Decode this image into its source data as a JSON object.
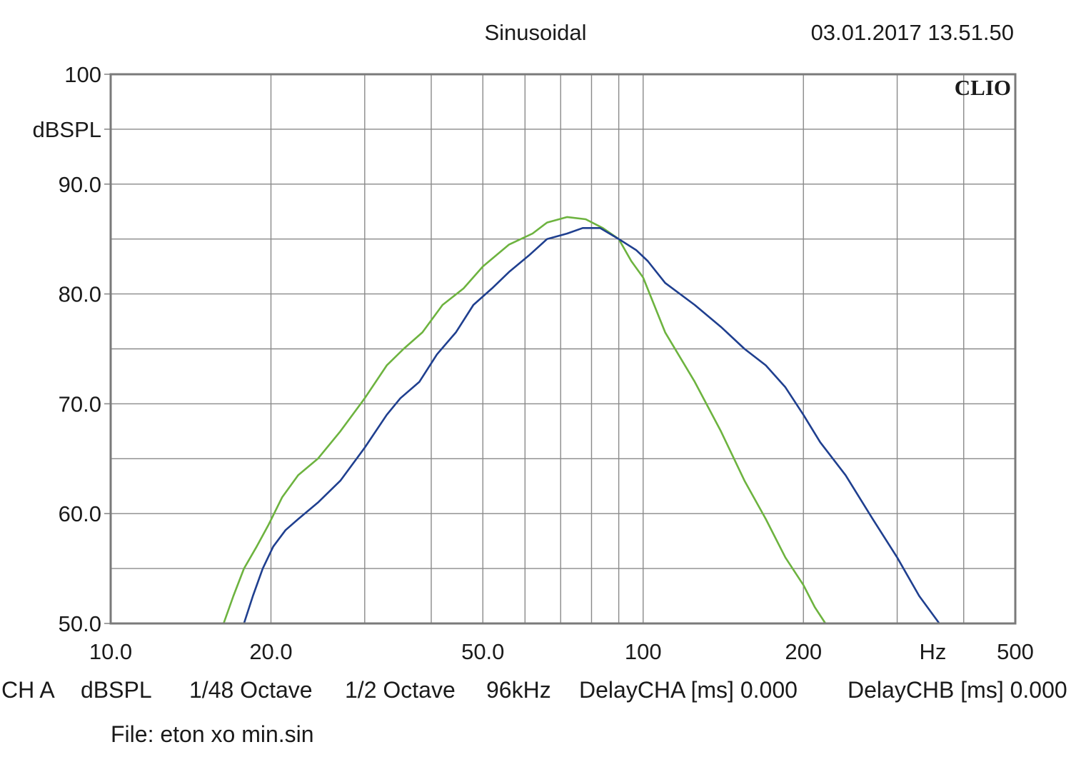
{
  "header": {
    "title": "Sinusoidal",
    "timestamp": "03.01.2017 13.51.50",
    "brand": "CLIO"
  },
  "footer": {
    "channel": "CH A",
    "unit": "dBSPL",
    "resolution": "1/48 Octave",
    "smoothing": "1/2 Octave",
    "sample_rate": "96kHz",
    "delay_a": "DelayCHA [ms] 0.000",
    "delay_b": "DelayCHB [ms] 0.000",
    "file": "File: eton xo min.sin"
  },
  "colors": {
    "grid": "#8a8a8a",
    "frame": "#7a7a7a",
    "series_green": "#6db33f",
    "series_blue": "#1f3f8f"
  },
  "chart_data": {
    "type": "line",
    "title": "Sinusoidal",
    "xlabel": "Hz",
    "ylabel": "dBSPL",
    "xscale": "log",
    "xlim": [
      10,
      500
    ],
    "ylim": [
      50,
      100
    ],
    "grid": true,
    "x_tick_labels": [
      {
        "value": 10,
        "label": "10.0"
      },
      {
        "value": 20,
        "label": "20.0"
      },
      {
        "value": 50,
        "label": "50.0"
      },
      {
        "value": 100,
        "label": "100"
      },
      {
        "value": 200,
        "label": "200"
      },
      {
        "value": 500,
        "label": "500"
      }
    ],
    "x_unit_label": {
      "value": 350,
      "label": "Hz"
    },
    "x_grid_values": [
      20,
      30,
      40,
      50,
      60,
      70,
      80,
      90,
      100,
      200,
      300,
      400
    ],
    "y_tick_labels": [
      {
        "value": 100,
        "label": "100"
      },
      {
        "value": 90,
        "label": "90.0"
      },
      {
        "value": 80,
        "label": "80.0"
      },
      {
        "value": 70,
        "label": "70.0"
      },
      {
        "value": 60,
        "label": "60.0"
      },
      {
        "value": 50,
        "label": "50.0"
      }
    ],
    "y_unit_label": {
      "value": 95,
      "label": "dBSPL"
    },
    "y_grid_values": [
      55,
      60,
      65,
      70,
      75,
      80,
      85,
      90,
      95
    ],
    "series": [
      {
        "color": "#6db33f",
        "x": [
          16.3,
          17.0,
          17.8,
          18.8,
          19.8,
          21.0,
          22.5,
          24.5,
          27.0,
          30.0,
          33.0,
          35.5,
          38.5,
          42.0,
          46.0,
          50.0,
          56.0,
          62.0,
          66.0,
          72.0,
          78.0,
          84.0,
          90.0,
          95.0,
          100.0,
          110.0,
          125.0,
          140.0,
          155.0,
          170.0,
          185.0,
          200.0,
          210.0,
          220.0
        ],
        "y": [
          50.0,
          52.5,
          55.0,
          57.0,
          59.0,
          61.5,
          63.5,
          65.0,
          67.5,
          70.5,
          73.5,
          75.0,
          76.5,
          79.0,
          80.5,
          82.5,
          84.5,
          85.5,
          86.5,
          87.0,
          86.8,
          86.0,
          85.0,
          83.0,
          81.5,
          76.5,
          72.0,
          67.5,
          63.0,
          59.5,
          56.0,
          53.5,
          51.5,
          50.0
        ]
      },
      {
        "color": "#1f3f8f",
        "x": [
          17.8,
          18.5,
          19.3,
          20.2,
          21.3,
          22.5,
          24.5,
          27.0,
          30.0,
          33.0,
          35.0,
          38.0,
          41.0,
          44.5,
          48.0,
          52.0,
          56.0,
          61.0,
          66.0,
          72.0,
          77.0,
          83.0,
          90.0,
          97.0,
          102.0,
          110.0,
          125.0,
          140.0,
          155.0,
          170.0,
          185.0,
          200.0,
          215.0,
          240.0,
          270.0,
          300.0,
          330.0,
          360.0
        ],
        "y": [
          50.0,
          52.5,
          55.0,
          57.0,
          58.5,
          59.5,
          61.0,
          63.0,
          66.0,
          69.0,
          70.5,
          72.0,
          74.5,
          76.5,
          79.0,
          80.5,
          82.0,
          83.5,
          85.0,
          85.5,
          86.0,
          86.0,
          85.0,
          84.0,
          83.0,
          81.0,
          79.0,
          77.0,
          75.0,
          73.5,
          71.5,
          69.0,
          66.5,
          63.5,
          59.5,
          56.0,
          52.5,
          50.0
        ]
      }
    ]
  }
}
